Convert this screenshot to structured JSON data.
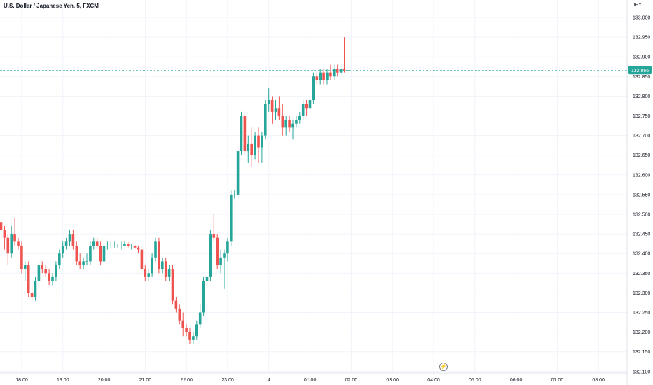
{
  "symbol": {
    "title": "U.S. Dollar / Japanese Yen, 5, FXCM"
  },
  "currency": "JPY",
  "colors": {
    "up": "#26a69a",
    "down": "#ef5350",
    "grid": "#f0f3fa",
    "axis_text": "#131722",
    "price_line": "#26a69a",
    "background": "#ffffff"
  },
  "icons": {
    "alert": "flash-icon"
  },
  "chart_data": {
    "type": "candlestick",
    "title": "U.S. Dollar / Japanese Yen, 5, FXCM",
    "ylabel": "JPY",
    "ylim": [
      132.1,
      133.0
    ],
    "y_ticks": [
      "133.000",
      "132.950",
      "132.900",
      "132.850",
      "132.800",
      "132.750",
      "132.700",
      "132.650",
      "132.600",
      "132.550",
      "132.500",
      "132.450",
      "132.400",
      "132.350",
      "132.300",
      "132.250",
      "132.200",
      "132.150",
      "132.100"
    ],
    "x_ticks": [
      "18:00",
      "19:00",
      "20:00",
      "21:00",
      "22:00",
      "23:00",
      "4",
      "01:00",
      "02:00",
      "03:00",
      "04:00",
      "05:00",
      "06:00",
      "07:00",
      "08:00"
    ],
    "last_price": "132.866",
    "grid": true,
    "ohlc": [
      [
        132.48,
        132.49,
        132.45,
        132.46
      ],
      [
        132.46,
        132.47,
        132.41,
        132.44
      ],
      [
        132.44,
        132.45,
        132.37,
        132.4
      ],
      [
        132.4,
        132.47,
        132.39,
        132.45
      ],
      [
        132.45,
        132.49,
        132.42,
        132.43
      ],
      [
        132.43,
        132.44,
        132.41,
        132.42
      ],
      [
        132.42,
        132.43,
        132.35,
        132.36
      ],
      [
        132.36,
        132.38,
        132.33,
        132.37
      ],
      [
        132.37,
        132.38,
        132.29,
        132.3
      ],
      [
        132.3,
        132.32,
        132.28,
        132.29
      ],
      [
        132.29,
        132.34,
        132.28,
        132.33
      ],
      [
        132.33,
        132.38,
        132.32,
        132.37
      ],
      [
        132.37,
        132.38,
        132.35,
        132.36
      ],
      [
        132.36,
        132.37,
        132.34,
        132.35
      ],
      [
        132.35,
        132.36,
        132.32,
        132.33
      ],
      [
        132.33,
        132.35,
        132.32,
        132.34
      ],
      [
        132.34,
        132.38,
        132.33,
        132.37
      ],
      [
        132.37,
        132.41,
        132.36,
        132.4
      ],
      [
        132.4,
        132.43,
        132.39,
        132.42
      ],
      [
        132.42,
        132.44,
        132.41,
        132.43
      ],
      [
        132.43,
        132.46,
        132.42,
        132.45
      ],
      [
        132.45,
        132.46,
        132.41,
        132.42
      ],
      [
        132.42,
        132.43,
        132.37,
        132.38
      ],
      [
        132.38,
        132.4,
        132.36,
        132.37
      ],
      [
        132.37,
        132.39,
        132.36,
        132.38
      ],
      [
        132.38,
        132.4,
        132.37,
        132.38
      ],
      [
        132.38,
        132.43,
        132.37,
        132.42
      ],
      [
        132.42,
        132.44,
        132.41,
        132.43
      ],
      [
        132.43,
        132.44,
        132.41,
        132.42
      ],
      [
        132.42,
        132.43,
        132.37,
        132.38
      ],
      [
        132.38,
        132.43,
        132.37,
        132.42
      ],
      [
        132.42,
        132.43,
        132.41,
        132.42
      ],
      [
        132.42,
        132.43,
        132.415,
        132.42
      ],
      [
        132.42,
        132.43,
        132.415,
        132.42
      ],
      [
        132.42,
        132.425,
        132.415,
        132.42
      ],
      [
        132.42,
        132.43,
        132.41,
        132.42
      ],
      [
        132.42,
        132.43,
        132.42,
        132.425
      ],
      [
        132.425,
        132.43,
        132.415,
        132.42
      ],
      [
        132.42,
        132.425,
        132.41,
        132.42
      ],
      [
        132.42,
        132.425,
        132.41,
        132.415
      ],
      [
        132.415,
        132.42,
        132.4,
        132.41
      ],
      [
        132.41,
        132.42,
        132.35,
        132.36
      ],
      [
        132.36,
        132.37,
        132.33,
        132.34
      ],
      [
        132.34,
        132.36,
        132.33,
        132.35
      ],
      [
        132.35,
        132.4,
        132.34,
        132.39
      ],
      [
        132.39,
        132.44,
        132.38,
        132.43
      ],
      [
        132.43,
        132.44,
        132.35,
        132.36
      ],
      [
        132.36,
        132.39,
        132.35,
        132.38
      ],
      [
        132.38,
        132.39,
        132.33,
        132.34
      ],
      [
        132.34,
        132.37,
        132.33,
        132.36
      ],
      [
        132.36,
        132.37,
        132.27,
        132.28
      ],
      [
        132.28,
        132.29,
        132.25,
        132.26
      ],
      [
        132.26,
        132.27,
        132.22,
        132.23
      ],
      [
        132.23,
        132.25,
        132.19,
        132.21
      ],
      [
        132.21,
        132.22,
        132.19,
        132.2
      ],
      [
        132.2,
        132.21,
        132.17,
        132.18
      ],
      [
        132.18,
        132.2,
        132.17,
        132.19
      ],
      [
        132.19,
        132.23,
        132.18,
        132.22
      ],
      [
        132.22,
        132.27,
        132.21,
        132.25
      ],
      [
        132.25,
        132.34,
        132.24,
        132.33
      ],
      [
        132.33,
        132.39,
        132.32,
        132.34
      ],
      [
        132.34,
        132.46,
        132.33,
        132.45
      ],
      [
        132.45,
        132.5,
        132.43,
        132.44
      ],
      [
        132.44,
        132.45,
        132.36,
        132.37
      ],
      [
        132.37,
        132.41,
        132.35,
        132.39
      ],
      [
        132.39,
        132.41,
        132.31,
        132.4
      ],
      [
        132.4,
        132.44,
        132.38,
        132.43
      ],
      [
        132.43,
        132.56,
        132.42,
        132.55
      ],
      [
        132.55,
        132.56,
        132.54,
        132.55
      ],
      [
        132.55,
        132.67,
        132.54,
        132.66
      ],
      [
        132.66,
        132.76,
        132.65,
        132.75
      ],
      [
        132.75,
        132.76,
        132.65,
        132.66
      ],
      [
        132.66,
        132.7,
        132.63,
        132.68
      ],
      [
        132.68,
        132.72,
        132.62,
        132.65
      ],
      [
        132.65,
        132.71,
        132.64,
        132.7
      ],
      [
        132.7,
        132.72,
        132.63,
        132.67
      ],
      [
        132.67,
        132.71,
        132.63,
        132.7
      ],
      [
        132.7,
        132.79,
        132.69,
        132.78
      ],
      [
        132.78,
        132.82,
        132.76,
        132.79
      ],
      [
        132.79,
        132.8,
        132.73,
        132.76
      ],
      [
        132.76,
        132.79,
        132.74,
        132.77
      ],
      [
        132.77,
        132.8,
        132.74,
        132.75
      ],
      [
        132.75,
        132.78,
        132.7,
        132.72
      ],
      [
        132.72,
        132.75,
        132.7,
        132.74
      ],
      [
        132.74,
        132.75,
        132.71,
        132.72
      ],
      [
        132.72,
        132.74,
        132.69,
        132.73
      ],
      [
        132.73,
        132.75,
        132.72,
        132.74
      ],
      [
        132.74,
        132.76,
        132.73,
        132.75
      ],
      [
        132.75,
        132.79,
        132.74,
        132.78
      ],
      [
        132.78,
        132.79,
        132.75,
        132.77
      ],
      [
        132.77,
        132.8,
        132.76,
        132.79
      ],
      [
        132.79,
        132.86,
        132.78,
        132.85
      ],
      [
        132.85,
        132.86,
        132.83,
        132.84
      ],
      [
        132.84,
        132.87,
        132.83,
        132.86
      ],
      [
        132.86,
        132.87,
        132.83,
        132.84
      ],
      [
        132.84,
        132.87,
        132.83,
        132.86
      ],
      [
        132.86,
        132.88,
        132.84,
        132.85
      ],
      [
        132.85,
        132.88,
        132.84,
        132.87
      ],
      [
        132.87,
        132.88,
        132.85,
        132.86
      ],
      [
        132.86,
        132.88,
        132.85,
        132.87
      ],
      [
        132.87,
        132.95,
        132.86,
        132.865
      ],
      [
        132.865,
        132.87,
        132.86,
        132.866
      ]
    ]
  }
}
